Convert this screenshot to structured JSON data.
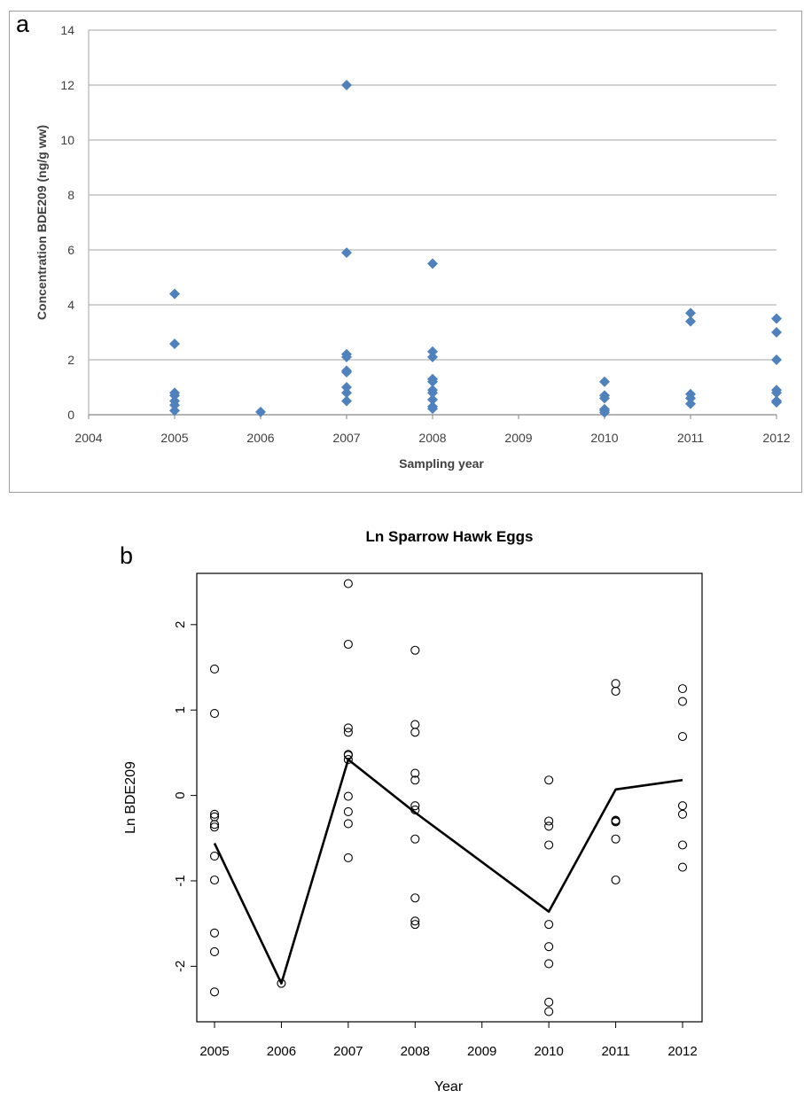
{
  "chart_data": [
    {
      "panel": "a",
      "type": "scatter",
      "title": "",
      "xlabel": "Sampling year",
      "ylabel": "Concentration BDE209 (ng/g ww)",
      "xlim": [
        2004,
        2012
      ],
      "ylim": [
        0,
        14
      ],
      "x_tick_labels": [
        "2004",
        "2005",
        "2006",
        "2007",
        "2008",
        "2009",
        "2010",
        "2011",
        "2012"
      ],
      "y_ticks": [
        0,
        2,
        4,
        6,
        8,
        10,
        12,
        14
      ],
      "grid": true,
      "marker": "diamond",
      "color": "#4f81bd",
      "points": [
        [
          2005,
          4.4
        ],
        [
          2005,
          2.58
        ],
        [
          2005,
          0.8
        ],
        [
          2005,
          0.7
        ],
        [
          2005,
          0.5
        ],
        [
          2005,
          0.35
        ],
        [
          2005,
          0.15
        ],
        [
          2006,
          0.1
        ],
        [
          2007,
          12.0
        ],
        [
          2007,
          5.9
        ],
        [
          2007,
          2.2
        ],
        [
          2007,
          2.1
        ],
        [
          2007,
          1.6
        ],
        [
          2007,
          1.55
        ],
        [
          2007,
          1.0
        ],
        [
          2007,
          0.8
        ],
        [
          2007,
          0.5
        ],
        [
          2008,
          5.5
        ],
        [
          2008,
          2.3
        ],
        [
          2008,
          2.1
        ],
        [
          2008,
          1.3
        ],
        [
          2008,
          1.2
        ],
        [
          2008,
          0.9
        ],
        [
          2008,
          0.8
        ],
        [
          2008,
          0.55
        ],
        [
          2008,
          0.3
        ],
        [
          2008,
          0.22
        ],
        [
          2010,
          1.2
        ],
        [
          2010,
          0.7
        ],
        [
          2010,
          0.6
        ],
        [
          2010,
          0.2
        ],
        [
          2010,
          0.15
        ],
        [
          2010,
          0.08
        ],
        [
          2011,
          3.7
        ],
        [
          2011,
          3.4
        ],
        [
          2011,
          0.75
        ],
        [
          2011,
          0.6
        ],
        [
          2011,
          0.4
        ],
        [
          2012,
          3.5
        ],
        [
          2012,
          3.0
        ],
        [
          2012,
          2.0
        ],
        [
          2012,
          0.9
        ],
        [
          2012,
          0.8
        ],
        [
          2012,
          0.5
        ],
        [
          2012,
          0.45
        ]
      ]
    },
    {
      "panel": "b",
      "type": "scatter",
      "title": "Ln Sparrow Hawk Eggs",
      "xlabel": "Year",
      "ylabel": "Ln BDE209",
      "x_tick_labels": [
        "2005",
        "2006",
        "2007",
        "2008",
        "2009",
        "2010",
        "2011",
        "2012"
      ],
      "y_ticks": [
        -2,
        -1,
        0,
        1,
        2
      ],
      "ylim": [
        -2.65,
        2.6
      ],
      "grid": false,
      "marker": "open-circle",
      "points": [
        [
          "2005",
          1.48
        ],
        [
          "2005",
          0.96
        ],
        [
          "2005",
          -0.22
        ],
        [
          "2005",
          -0.25
        ],
        [
          "2005",
          -0.34
        ],
        [
          "2005",
          -0.37
        ],
        [
          "2005",
          -0.71
        ],
        [
          "2005",
          -0.99
        ],
        [
          "2005",
          -1.61
        ],
        [
          "2005",
          -1.83
        ],
        [
          "2005",
          -2.3
        ],
        [
          "2006",
          -2.2
        ],
        [
          "2007",
          2.48
        ],
        [
          "2007",
          1.77
        ],
        [
          "2007",
          0.79
        ],
        [
          "2007",
          0.74
        ],
        [
          "2007",
          0.48
        ],
        [
          "2007",
          0.47
        ],
        [
          "2007",
          0.42
        ],
        [
          "2007",
          -0.01
        ],
        [
          "2007",
          -0.19
        ],
        [
          "2007",
          -0.33
        ],
        [
          "2007",
          -0.73
        ],
        [
          "2008",
          1.7
        ],
        [
          "2008",
          0.83
        ],
        [
          "2008",
          0.74
        ],
        [
          "2008",
          0.26
        ],
        [
          "2008",
          0.18
        ],
        [
          "2008",
          -0.12
        ],
        [
          "2008",
          -0.17
        ],
        [
          "2008",
          -0.51
        ],
        [
          "2008",
          -1.2
        ],
        [
          "2008",
          -1.47
        ],
        [
          "2008",
          -1.51
        ],
        [
          "2010",
          0.18
        ],
        [
          "2010",
          -0.3
        ],
        [
          "2010",
          -0.36
        ],
        [
          "2010",
          -0.58
        ],
        [
          "2010",
          -1.51
        ],
        [
          "2010",
          -1.77
        ],
        [
          "2010",
          -1.97
        ],
        [
          "2010",
          -2.42
        ],
        [
          "2010",
          -2.53
        ],
        [
          "2011",
          1.31
        ],
        [
          "2011",
          1.22
        ],
        [
          "2011",
          -0.29
        ],
        [
          "2011",
          -0.3
        ],
        [
          "2011",
          -0.31
        ],
        [
          "2011",
          -0.51
        ],
        [
          "2011",
          -0.99
        ],
        [
          "2012",
          1.25
        ],
        [
          "2012",
          1.1
        ],
        [
          "2012",
          0.69
        ],
        [
          "2012",
          -0.12
        ],
        [
          "2012",
          -0.22
        ],
        [
          "2012",
          -0.58
        ],
        [
          "2012",
          -0.84
        ]
      ],
      "line": {
        "x": [
          "2005",
          "2006",
          "2007",
          "2008",
          "2010",
          "2011",
          "2012"
        ],
        "y": [
          -0.56,
          -2.2,
          0.42,
          -0.2,
          -1.36,
          0.07,
          0.18
        ]
      }
    }
  ],
  "labels": {
    "panel_a": "a",
    "panel_b": "b"
  }
}
